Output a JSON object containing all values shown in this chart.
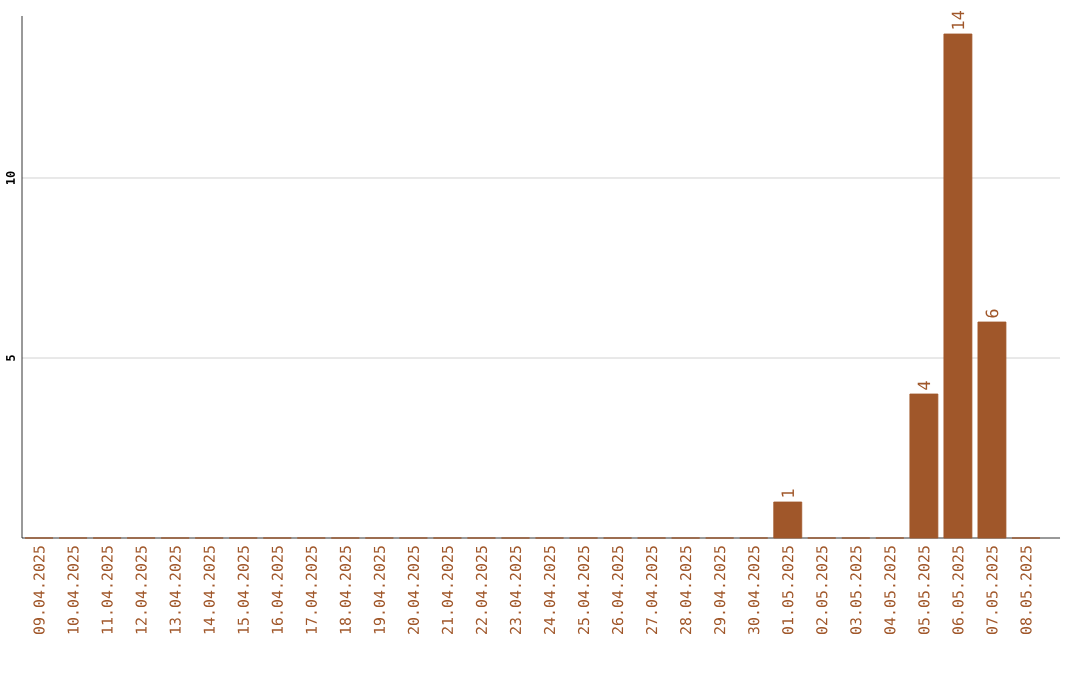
{
  "chart_data": {
    "type": "bar",
    "categories": [
      "09.04.2025",
      "10.04.2025",
      "11.04.2025",
      "12.04.2025",
      "13.04.2025",
      "14.04.2025",
      "15.04.2025",
      "16.04.2025",
      "17.04.2025",
      "18.04.2025",
      "19.04.2025",
      "20.04.2025",
      "21.04.2025",
      "22.04.2025",
      "23.04.2025",
      "24.04.2025",
      "25.04.2025",
      "26.04.2025",
      "27.04.2025",
      "28.04.2025",
      "29.04.2025",
      "30.04.2025",
      "01.05.2025",
      "02.05.2025",
      "03.05.2025",
      "04.05.2025",
      "05.05.2025",
      "06.05.2025",
      "07.05.2025",
      "08.05.2025"
    ],
    "values": [
      0,
      0,
      0,
      0,
      0,
      0,
      0,
      0,
      0,
      0,
      0,
      0,
      0,
      0,
      0,
      0,
      0,
      0,
      0,
      0,
      0,
      0,
      1,
      0,
      0,
      0,
      4,
      14,
      6,
      0
    ],
    "value_labels": [
      null,
      null,
      null,
      null,
      null,
      null,
      null,
      null,
      null,
      null,
      null,
      null,
      null,
      null,
      null,
      null,
      null,
      null,
      null,
      null,
      null,
      null,
      "1",
      null,
      null,
      null,
      "4",
      "14",
      "6",
      null
    ],
    "color": "#a0572a",
    "ylim": [
      0,
      14.5
    ],
    "yticks": [
      5,
      10
    ],
    "grid": "y"
  }
}
